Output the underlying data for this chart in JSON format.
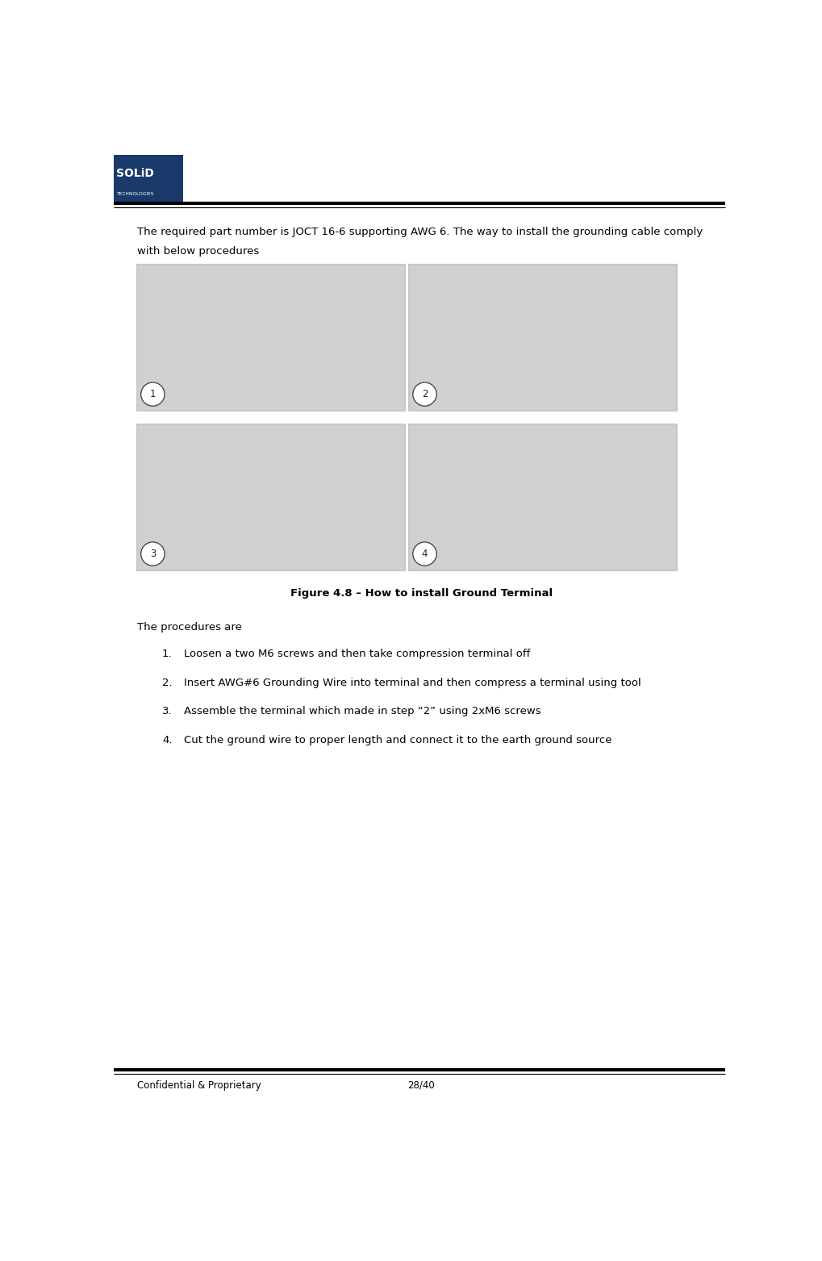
{
  "page_width": 10.19,
  "page_height": 15.63,
  "bg_color": "#ffffff",
  "logo_box_color": "#1a3a6b",
  "logo_text_line1": "SOLiD",
  "logo_text_line2": "TECHNOLOGIES",
  "intro_text_line1": "The required part number is JOCT 16-6 supporting AWG 6. The way to install the grounding cable comply",
  "intro_text_line2": "with below procedures",
  "figure_caption": "Figure 4.8 – How to install Ground Terminal",
  "procedures_header": "The procedures are",
  "procedures": [
    "Loosen a two M6 screws and then take compression terminal off",
    "Insert AWG#6 Grounding Wire into terminal and then compress a terminal using tool",
    "Assemble the terminal which made in step “2” using 2xM6 screws",
    "Cut the ground wire to proper length and connect it to the earth ground source"
  ],
  "footer_left": "Confidential & Proprietary",
  "footer_right": "28/40",
  "image_border_color": "#c8c8c8",
  "image_bg_color": "#d0d0d0",
  "labels": [
    "1",
    "2",
    "3",
    "4"
  ]
}
